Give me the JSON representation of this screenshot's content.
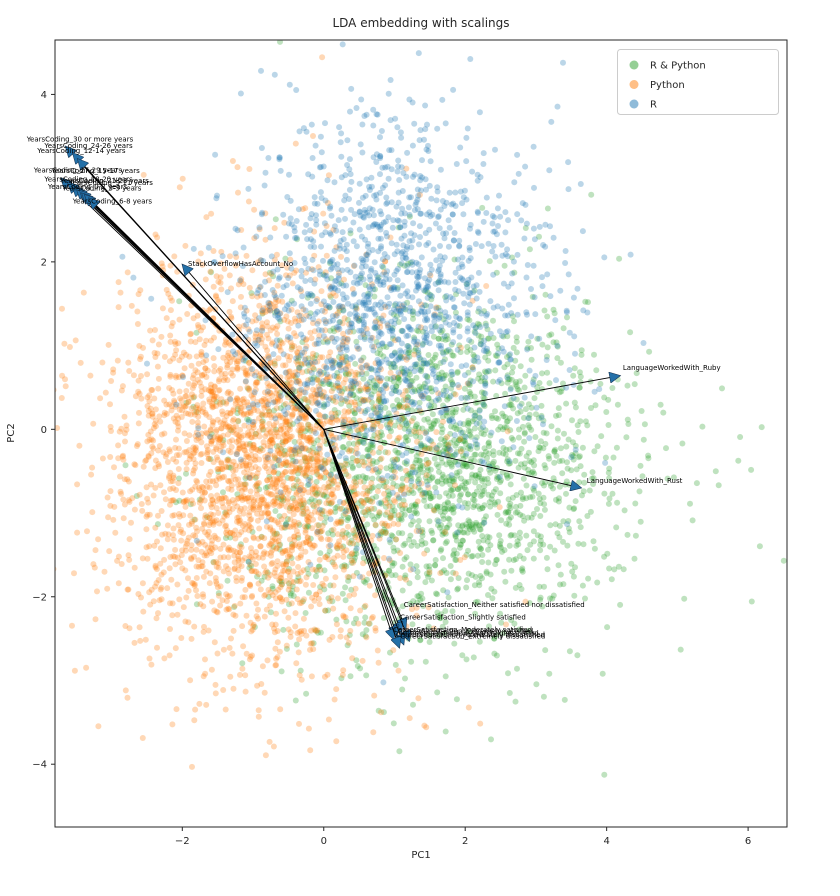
{
  "chart_data": {
    "type": "scatter",
    "title": "LDA embedding with scalings",
    "xlabel": "PC1",
    "ylabel": "PC2",
    "xlim": [
      -3.8,
      6.55
    ],
    "ylim": [
      -4.75,
      4.65
    ],
    "xticks": [
      -2,
      0,
      2,
      4,
      6
    ],
    "yticks": [
      -4,
      -2,
      0,
      2,
      4
    ],
    "grid": false,
    "legend_position": "upper right",
    "marker_alpha": 0.3,
    "series": [
      {
        "name": "R & Python",
        "color": "#2ca02c",
        "alpha": 0.3,
        "seed": 101,
        "distribution": "gaussian",
        "components": [
          {
            "n": 1800,
            "center": [
              1.5,
              -0.45
            ],
            "std": [
              1.25,
              1.05
            ]
          },
          {
            "n": 200,
            "center": [
              2.6,
              -0.5
            ],
            "std": [
              1.8,
              1.3
            ]
          }
        ]
      },
      {
        "name": "Python",
        "color": "#ff7f0e",
        "alpha": 0.3,
        "seed": 202,
        "distribution": "gaussian",
        "components": [
          {
            "n": 2500,
            "center": [
              -0.9,
              -0.35
            ],
            "std": [
              1.05,
              1.15
            ]
          },
          {
            "n": 150,
            "center": [
              -0.8,
              -1.2
            ],
            "std": [
              1.4,
              1.6
            ]
          }
        ]
      },
      {
        "name": "R",
        "color": "#1f77b4",
        "alpha": 0.3,
        "seed": 303,
        "distribution": "gaussian",
        "components": [
          {
            "n": 1350,
            "center": [
              0.95,
              1.4
            ],
            "std": [
              1.1,
              1.1
            ]
          },
          {
            "n": 100,
            "center": [
              1.1,
              2.4
            ],
            "std": [
              1.0,
              0.9
            ]
          }
        ]
      }
    ],
    "arrows": {
      "origin": [
        0,
        0
      ],
      "color": "#000000",
      "head_color": "#2470a8",
      "items": [
        {
          "label": "YearsCoding_30 or more years",
          "tip": [
            -3.65,
            3.38
          ],
          "text": [
            -4.2,
            3.44
          ],
          "anchor": "start"
        },
        {
          "label": "YearsCoding_24-26 years",
          "tip": [
            -3.55,
            3.3
          ],
          "text": [
            -3.95,
            3.36
          ],
          "anchor": "start"
        },
        {
          "label": "YearsCoding_12-14 years",
          "tip": [
            -3.48,
            3.23
          ],
          "text": [
            -4.05,
            3.3
          ],
          "anchor": "start"
        },
        {
          "label": "YearsCoding_27-29 years",
          "tip": [
            -3.72,
            3.0
          ],
          "text": [
            -4.1,
            3.07
          ],
          "anchor": "start"
        },
        {
          "label": "YearsCoding_15-17 years",
          "tip": [
            -3.62,
            2.95
          ],
          "text": [
            -3.85,
            3.06
          ],
          "anchor": "start"
        },
        {
          "label": "YearsCoding_18-20 years",
          "tip": [
            -3.56,
            2.91
          ],
          "text": [
            -3.95,
            2.96
          ],
          "anchor": "start"
        },
        {
          "label": "YearsCoding_21-23 years",
          "tip": [
            -3.5,
            2.88
          ],
          "text": [
            -3.72,
            2.94
          ],
          "anchor": "start"
        },
        {
          "label": "YearsCoding_9-11 years",
          "tip": [
            -3.45,
            2.85
          ],
          "text": [
            -3.6,
            2.92
          ],
          "anchor": "start"
        },
        {
          "label": "YearsCoding_0-2 years",
          "tip": [
            -3.42,
            2.82
          ],
          "text": [
            -3.9,
            2.87
          ],
          "anchor": "start"
        },
        {
          "label": "YearsCoding_3-5 years",
          "tip": [
            -3.38,
            2.8
          ],
          "text": [
            -3.7,
            2.85
          ],
          "anchor": "start"
        },
        {
          "label": "YearsCoding_6-8 years",
          "tip": [
            -3.32,
            2.76
          ],
          "text": [
            -3.55,
            2.7
          ],
          "anchor": "start"
        },
        {
          "label": "StackOverflowHasAccount_No",
          "tip": [
            -2.0,
            1.97
          ],
          "text": [
            -1.92,
            1.95
          ],
          "anchor": "start"
        },
        {
          "label": "LanguageWorkedWith_Ruby",
          "tip": [
            4.19,
            0.64
          ],
          "text": [
            4.23,
            0.71
          ],
          "anchor": "start"
        },
        {
          "label": "LanguageWorkedWith_Rust",
          "tip": [
            3.64,
            -0.7
          ],
          "text": [
            3.72,
            -0.64
          ],
          "anchor": "start"
        },
        {
          "label": "CareerSatisfaction_Neither satisfied nor dissatisfied",
          "tip": [
            1.16,
            -2.38
          ],
          "text": [
            1.13,
            -2.12
          ],
          "anchor": "start"
        },
        {
          "label": "CareerSatisfaction_Slightly satisfied",
          "tip": [
            1.1,
            -2.43
          ],
          "text": [
            1.08,
            -2.27
          ],
          "anchor": "start"
        },
        {
          "label": "CareerSatisfaction_Moderately satisfied",
          "tip": [
            1.04,
            -2.47
          ],
          "text": [
            0.98,
            -2.42
          ],
          "anchor": "start"
        },
        {
          "label": "CareerSatisfaction_Extremely satisfied",
          "tip": [
            0.99,
            -2.51
          ],
          "text": [
            1.05,
            -2.44
          ],
          "anchor": "start"
        },
        {
          "label": "CareerSatisfaction_Slightly dissatisfied",
          "tip": [
            1.21,
            -2.53
          ],
          "text": [
            1.12,
            -2.46
          ],
          "anchor": "start"
        },
        {
          "label": "CareerSatisfaction_Moderately dissatisfied",
          "tip": [
            1.13,
            -2.57
          ],
          "text": [
            1.02,
            -2.48
          ],
          "anchor": "start"
        },
        {
          "label": "CareerSatisfaction_Extremely dissatisfied",
          "tip": [
            1.07,
            -2.61
          ],
          "text": [
            1.08,
            -2.5
          ],
          "anchor": "start"
        }
      ]
    }
  }
}
